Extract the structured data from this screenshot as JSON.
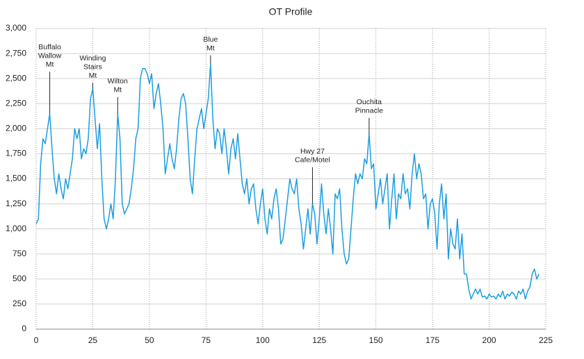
{
  "chart_data": {
    "type": "line",
    "title": "OT Profile",
    "x": [
      0,
      1,
      2,
      3,
      4,
      5,
      6,
      7,
      8,
      9,
      10,
      11,
      12,
      13,
      14,
      15,
      16,
      17,
      18,
      19,
      20,
      21,
      22,
      23,
      24,
      25,
      26,
      27,
      28,
      29,
      30,
      31,
      32,
      33,
      34,
      35,
      36,
      37,
      38,
      39,
      40,
      41,
      42,
      43,
      44,
      45,
      46,
      47,
      48,
      49,
      50,
      51,
      52,
      53,
      54,
      55,
      56,
      57,
      58,
      59,
      60,
      61,
      62,
      63,
      64,
      65,
      66,
      67,
      68,
      69,
      70,
      71,
      72,
      73,
      74,
      75,
      76,
      77,
      78,
      79,
      80,
      81,
      82,
      83,
      84,
      85,
      86,
      87,
      88,
      89,
      90,
      91,
      92,
      93,
      94,
      95,
      96,
      97,
      98,
      99,
      100,
      101,
      102,
      103,
      104,
      105,
      106,
      107,
      108,
      109,
      110,
      111,
      112,
      113,
      114,
      115,
      116,
      117,
      118,
      119,
      120,
      121,
      122,
      123,
      124,
      125,
      126,
      127,
      128,
      129,
      130,
      131,
      132,
      133,
      134,
      135,
      136,
      137,
      138,
      139,
      140,
      141,
      142,
      143,
      144,
      145,
      146,
      147,
      148,
      149,
      150,
      151,
      152,
      153,
      154,
      155,
      156,
      157,
      158,
      159,
      160,
      161,
      162,
      163,
      164,
      165,
      166,
      167,
      168,
      169,
      170,
      171,
      172,
      173,
      174,
      175,
      176,
      177,
      178,
      179,
      180,
      181,
      182,
      183,
      184,
      185,
      186,
      187,
      188,
      189,
      190,
      191,
      192,
      193,
      194,
      195,
      196,
      197,
      198,
      199,
      200,
      201,
      202,
      203,
      204,
      205,
      206,
      207,
      208,
      209,
      210,
      211,
      212,
      213,
      214,
      215,
      216,
      217,
      218,
      219,
      220,
      221,
      222
    ],
    "series": [
      {
        "color": "#1a9de0",
        "values": [
          1050,
          1100,
          1650,
          1900,
          1850,
          2000,
          2150,
          1800,
          1500,
          1350,
          1550,
          1400,
          1300,
          1500,
          1400,
          1550,
          1700,
          2000,
          1900,
          2000,
          1700,
          1800,
          1750,
          1900,
          2300,
          2400,
          2100,
          1800,
          2050,
          1500,
          1100,
          1000,
          1100,
          1250,
          1100,
          1500,
          2150,
          1900,
          1250,
          1150,
          1200,
          1250,
          1400,
          1600,
          1900,
          2000,
          2500,
          2600,
          2600,
          2550,
          2450,
          2550,
          2200,
          2350,
          2450,
          2250,
          2000,
          1550,
          1700,
          1850,
          1700,
          1600,
          1800,
          2100,
          2300,
          2350,
          2250,
          1900,
          1500,
          1350,
          1700,
          2000,
          2100,
          2200,
          2000,
          2150,
          2300,
          2650,
          2100,
          1800,
          2000,
          1950,
          1750,
          2000,
          1800,
          1550,
          1800,
          1900,
          1700,
          1950,
          1700,
          1450,
          1350,
          1500,
          1250,
          1400,
          1450,
          1200,
          1050,
          1250,
          1400,
          1100,
          950,
          1200,
          1100,
          1300,
          1400,
          1200,
          850,
          900,
          1100,
          1300,
          1500,
          1400,
          1350,
          1500,
          1200,
          1050,
          800,
          1000,
          1200,
          950,
          1250,
          1150,
          850,
          1100,
          1450,
          1150,
          950,
          1200,
          1000,
          750,
          1350,
          1300,
          1400,
          1000,
          750,
          650,
          700,
          1000,
          1300,
          1550,
          1450,
          1550,
          1500,
          1700,
          1650,
          1950,
          1600,
          1650,
          1200,
          1350,
          1500,
          1250,
          1400,
          1550,
          1000,
          1300,
          1550,
          1100,
          1350,
          1300,
          1550,
          1350,
          1400,
          1200,
          1550,
          1750,
          1500,
          1650,
          1550,
          1300,
          1350,
          1000,
          1250,
          1300,
          1150,
          800,
          1250,
          1450,
          1100,
          1350,
          700,
          1000,
          850,
          800,
          1100,
          700,
          950,
          550,
          550,
          400,
          300,
          350,
          400,
          350,
          400,
          320,
          330,
          300,
          350,
          320,
          330,
          300,
          350,
          320,
          380,
          300,
          350,
          330,
          370,
          350,
          300,
          380,
          350,
          400,
          300,
          380,
          420,
          550,
          600,
          500,
          550
        ]
      }
    ],
    "xlim": [
      0,
      225
    ],
    "xticks": [
      0,
      25,
      50,
      75,
      100,
      125,
      150,
      175,
      200,
      225
    ],
    "ylim": [
      0,
      3000
    ],
    "yticks": [
      0,
      250,
      500,
      750,
      {
        "value": 1000,
        "label": "1,000"
      },
      {
        "value": 1250,
        "label": "1,250"
      },
      {
        "value": 1500,
        "label": "1,500"
      },
      {
        "value": 1750,
        "label": "1,750"
      },
      {
        "value": 2000,
        "label": "2,000"
      },
      {
        "value": 2250,
        "label": "2,250"
      },
      {
        "value": 2500,
        "label": "2,500"
      },
      {
        "value": 2750,
        "label": "2,750"
      },
      {
        "value": 3000,
        "label": "3,000"
      }
    ],
    "grid": true,
    "annotations": [
      {
        "lines": [
          "Buffalo",
          "Wallow",
          "Mt"
        ],
        "x": 6,
        "y": 2150
      },
      {
        "lines": [
          "Winding",
          "Stairs",
          "Mt"
        ],
        "x": 25,
        "y": 2400
      },
      {
        "lines": [
          "Wilton",
          "Mt"
        ],
        "x": 36,
        "y": 2150
      },
      {
        "lines": [
          "Blue",
          "Mt"
        ],
        "x": 77,
        "y": 2650
      },
      {
        "lines": [
          "Hwy 27",
          "Cafe/Motel"
        ],
        "x": 122,
        "y": 1250
      },
      {
        "lines": [
          "Ouchita",
          "Pinnacle"
        ],
        "x": 147,
        "y": 1950
      }
    ]
  }
}
